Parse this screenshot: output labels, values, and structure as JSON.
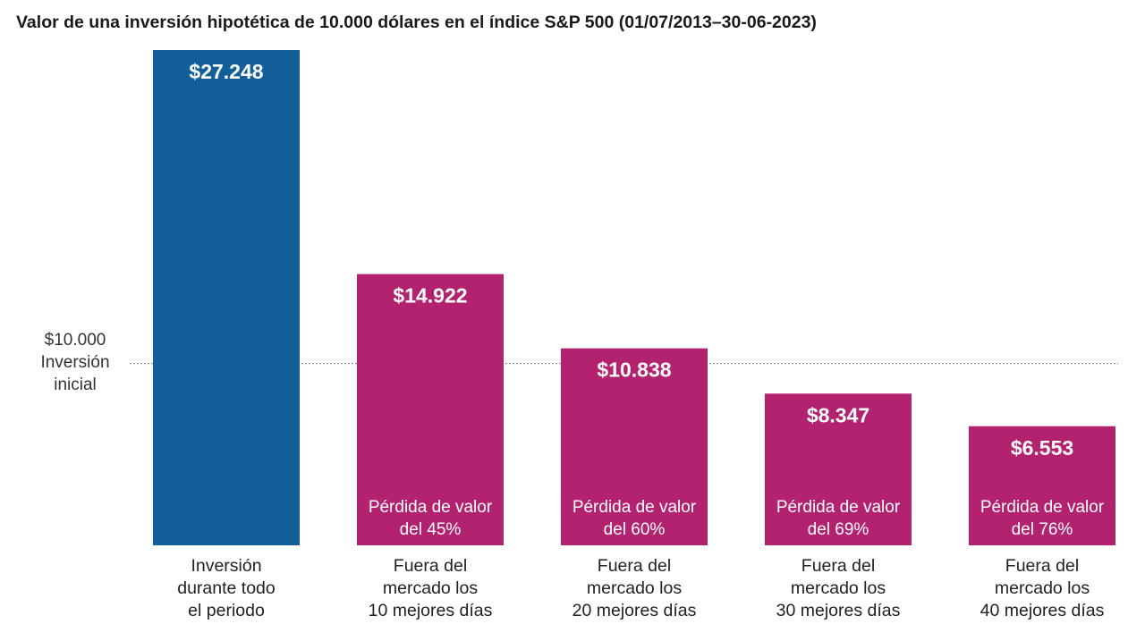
{
  "chart_data": {
    "type": "bar",
    "title": "Valor de una inversión hipotética de 10.000 dólares en el índice S&P 500 (01/07/2013–30-06-2023)",
    "categories": [
      [
        "Inversión",
        "durante todo",
        "el periodo"
      ],
      [
        "Fuera del",
        "mercado los",
        "10 mejores días"
      ],
      [
        "Fuera del",
        "mercado los",
        "20 mejores días"
      ],
      [
        "Fuera del",
        "mercado los",
        "30 mejores días"
      ],
      [
        "Fuera del",
        "mercado los",
        "40 mejores días"
      ]
    ],
    "values": [
      27248,
      14922,
      10838,
      8347,
      6553
    ],
    "value_labels": [
      "$27.248",
      "$14.922",
      "$10.838",
      "$8.347",
      "$6.553"
    ],
    "loss_labels": [
      null,
      [
        "Pérdida de valor",
        "del 45%"
      ],
      [
        "Pérdida de valor",
        "del 60%"
      ],
      [
        "Pérdida de valor",
        "del 69%"
      ],
      [
        "Pérdida de valor",
        "del 76%"
      ]
    ],
    "colors": [
      "#135f99",
      "#b3226f",
      "#b3226f",
      "#b3226f",
      "#b3226f"
    ],
    "reference_line": {
      "value": 10000,
      "label": [
        "$10.000",
        "Inversión",
        "inicial"
      ]
    },
    "ylim": [
      0,
      27248
    ],
    "xlabel": "",
    "ylabel": "",
    "grid": false,
    "legend": "none"
  }
}
